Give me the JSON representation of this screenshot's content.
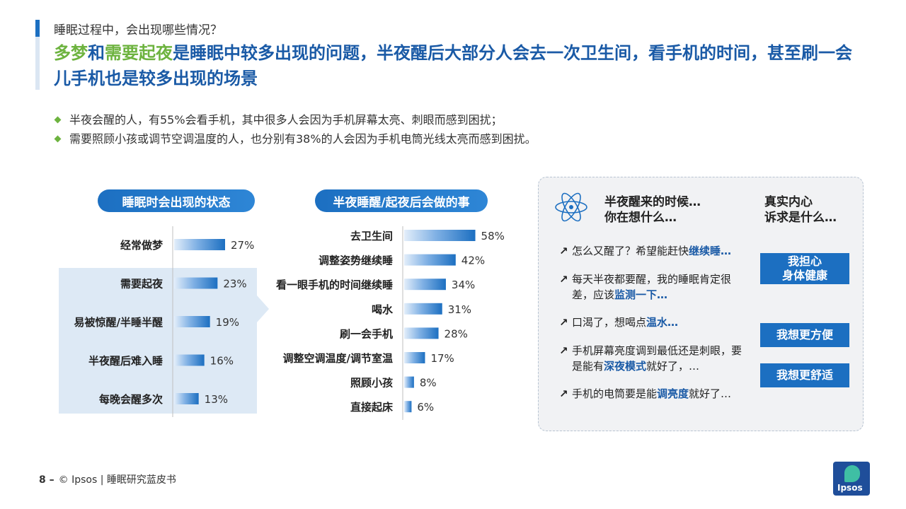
{
  "header": {
    "subtitle": "睡眠过程中，会出现哪些情况？",
    "headline_part1": "多梦",
    "headline_part2": "和",
    "headline_part3": "需要起夜",
    "headline_part4": "是睡眠中较多出现的问题，半夜醒后大部分人会去一次卫生间，看手机的时间，甚至刷一会儿手机也是较多出现的场景"
  },
  "bullets": [
    "半夜会醒的人，有55%会看手机，其中很多人会因为手机屏幕太亮、刺眼而感到困扰；",
    "需要照顾小孩或调节空调温度的人，也分别有38%的人会因为手机电筒光线太亮而感到困扰。"
  ],
  "chart_data": [
    {
      "type": "bar",
      "title": "睡眠时会出现的状态",
      "categories": [
        "经常做梦",
        "需要起夜",
        "易被惊醒/半睡半醒",
        "半夜醒后难入睡",
        "每晚会醒多次"
      ],
      "values": [
        27,
        23,
        19,
        16,
        13
      ],
      "value_labels": [
        "27%",
        "23%",
        "19%",
        "16%",
        "13%"
      ],
      "unit": "%",
      "xlim": [
        0,
        60
      ]
    },
    {
      "type": "bar",
      "title": "半夜睡醒/起夜后会做的事",
      "categories": [
        "去卫生间",
        "调整姿势继续睡",
        "看一眼手机的时间继续睡",
        "喝水",
        "刷一会手机",
        "调整空调温度/调节室温",
        "照顾小孩",
        "直接起床"
      ],
      "values": [
        58,
        42,
        34,
        31,
        28,
        17,
        8,
        6
      ],
      "value_labels": [
        "58%",
        "42%",
        "34%",
        "31%",
        "28%",
        "17%",
        "8%",
        "6%"
      ],
      "unit": "%",
      "xlim": [
        0,
        60
      ]
    }
  ],
  "panel": {
    "heading_left": [
      "半夜醒来的时候…",
      "你在想什么…"
    ],
    "heading_right": [
      "真实内心",
      "诉求是什么…"
    ],
    "thoughts": [
      {
        "pre": "怎么又醒了？希望能赶快",
        "bold": "继续睡…",
        "post": ""
      },
      {
        "pre": "每天半夜都要醒，我的睡眠肯定很差，应该",
        "bold": "监测一下…",
        "post": ""
      },
      {
        "pre": "口渴了，想喝点",
        "bold": "温水…",
        "post": ""
      },
      {
        "pre": "手机屏幕亮度调到最低还是刺眼，要是能有",
        "bold": "深夜模式",
        "post": "就好了，…"
      },
      {
        "pre": "手机的电筒要是能",
        "bold": "调亮度",
        "post": "就好了…"
      }
    ],
    "needs": [
      [
        "我担心",
        "身体健康"
      ],
      [
        "我想更方便"
      ],
      [
        "我想更舒适"
      ]
    ]
  },
  "footer": {
    "page": "8 –",
    "text": "© Ipsos | 睡眠研究蓝皮书"
  },
  "logo": "Ipsos",
  "colors": {
    "primary": "#1c6fc1",
    "heading": "#1a5aa6",
    "accent_green": "#6db33f",
    "highlight": "#dbe8f5"
  }
}
